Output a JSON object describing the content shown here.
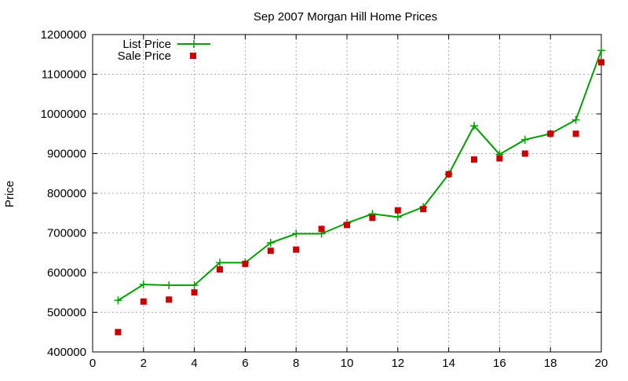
{
  "chart_data": {
    "type": "line",
    "title": "Sep 2007 Morgan Hill Home Prices",
    "xlabel": "",
    "ylabel": "Price",
    "xlim": [
      0,
      20
    ],
    "ylim": [
      400000,
      1200000
    ],
    "x_ticks": [
      0,
      2,
      4,
      6,
      8,
      10,
      12,
      14,
      16,
      18,
      20
    ],
    "y_ticks": [
      400000,
      500000,
      600000,
      700000,
      800000,
      900000,
      1000000,
      1100000,
      1200000
    ],
    "grid": true,
    "legend_position": "top-left",
    "series": [
      {
        "name": "List Price",
        "style": "line-plus",
        "color": "#00a000",
        "x": [
          1,
          2,
          3,
          4,
          5,
          6,
          7,
          8,
          9,
          10,
          11,
          12,
          13,
          14,
          15,
          16,
          17,
          18,
          19,
          20
        ],
        "values": [
          530000,
          570000,
          568000,
          568000,
          625000,
          625000,
          675000,
          698000,
          698000,
          725000,
          748000,
          740000,
          765000,
          848000,
          970000,
          898000,
          935000,
          950000,
          985000,
          1160000
        ]
      },
      {
        "name": "Sale Price",
        "style": "square",
        "color": "#cc0000",
        "x": [
          1,
          2,
          3,
          4,
          5,
          6,
          7,
          8,
          9,
          10,
          11,
          12,
          13,
          14,
          15,
          16,
          17,
          18,
          19,
          20
        ],
        "values": [
          450000,
          527000,
          532000,
          550000,
          608000,
          622000,
          655000,
          658000,
          710000,
          720000,
          738000,
          757000,
          760000,
          848000,
          885000,
          888000,
          900000,
          950000,
          950000,
          1130000
        ]
      }
    ]
  }
}
